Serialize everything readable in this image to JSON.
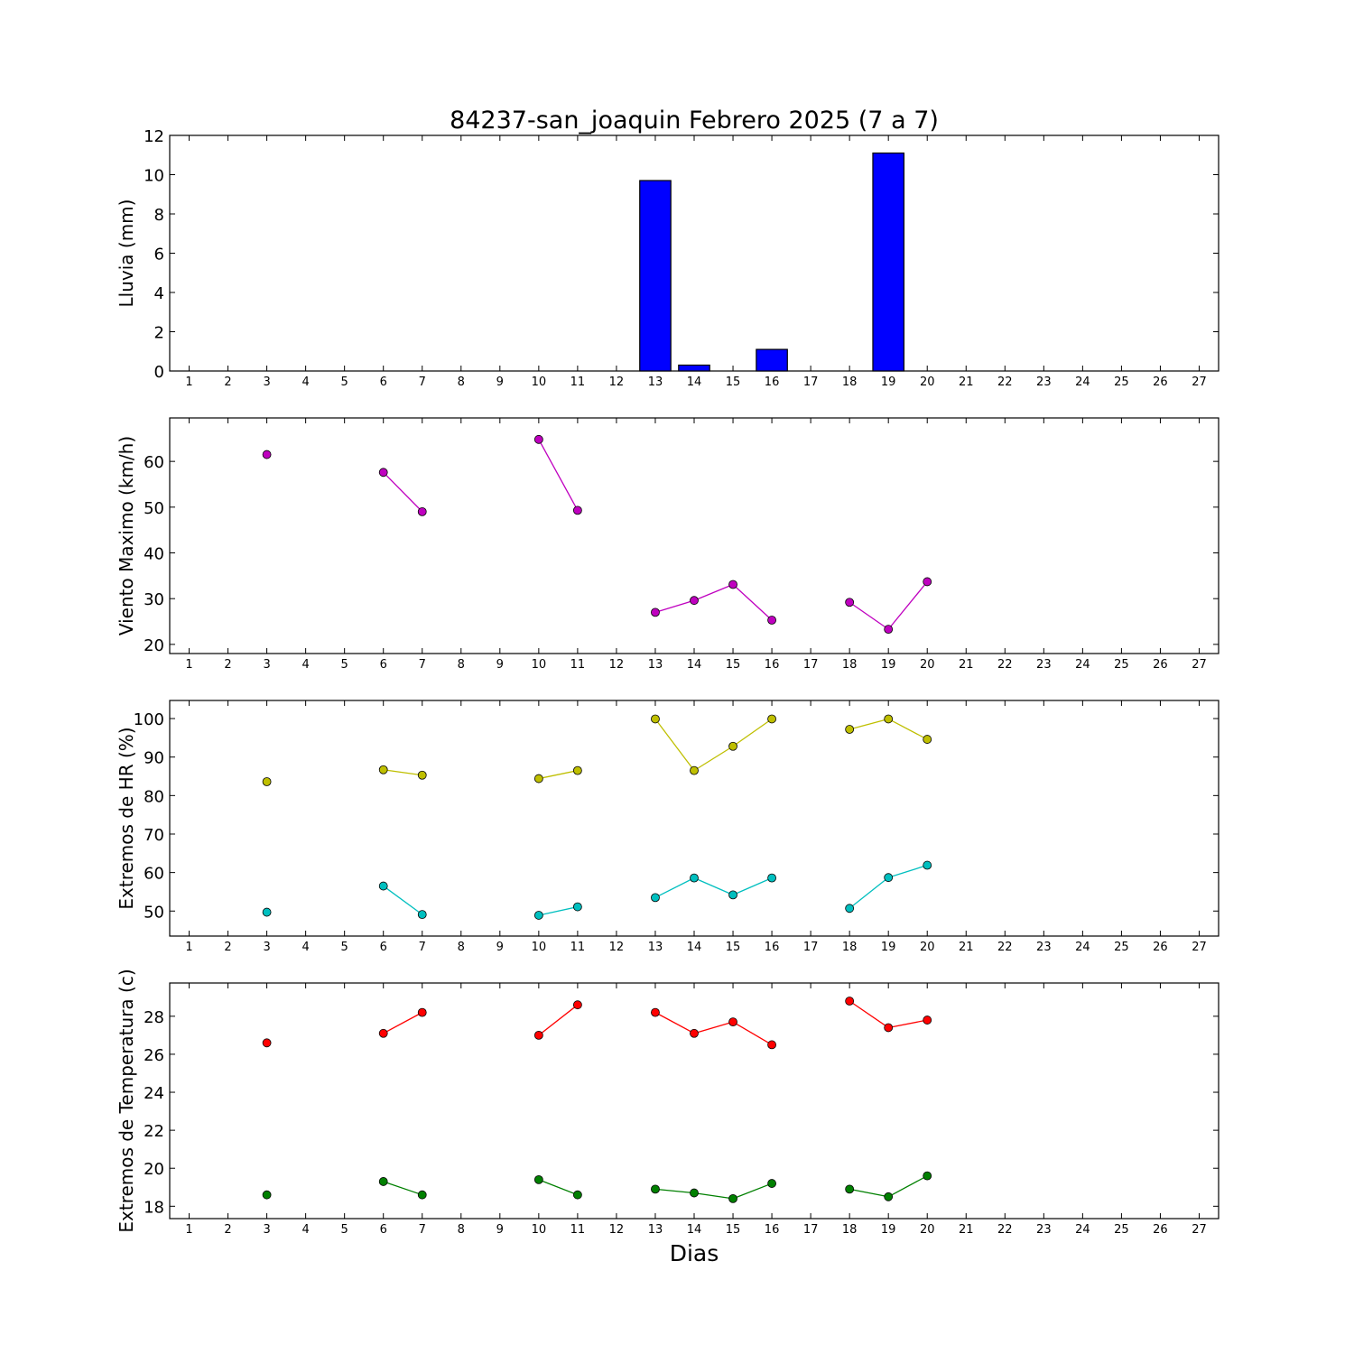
{
  "title": "84237-san_joaquin Febrero 2025  (7 a 7)",
  "xlabel": "Dias",
  "chart_data": [
    {
      "type": "bar",
      "ylabel": "Lluvia (mm)",
      "xlim": [
        0.5,
        27.5
      ],
      "xticks": [
        1,
        2,
        3,
        4,
        5,
        6,
        7,
        8,
        9,
        10,
        11,
        12,
        13,
        14,
        15,
        16,
        17,
        18,
        19,
        20,
        21,
        22,
        23,
        24,
        25,
        26,
        27
      ],
      "ylim": [
        0,
        12
      ],
      "yticks": [
        0,
        2,
        4,
        6,
        8,
        10,
        12
      ],
      "bar_color": "#0000ff",
      "x": [
        3,
        6,
        7,
        10,
        11,
        13,
        14,
        16,
        19,
        20
      ],
      "values": [
        0,
        0,
        0,
        0,
        0,
        9.7,
        0.3,
        1.1,
        11.1,
        0
      ]
    },
    {
      "type": "line",
      "ylabel": "Viento Maximo (km/h)",
      "xlim": [
        0.5,
        27.5
      ],
      "xticks": [
        1,
        2,
        3,
        4,
        5,
        6,
        7,
        8,
        9,
        10,
        11,
        12,
        13,
        14,
        15,
        16,
        17,
        18,
        19,
        20,
        21,
        22,
        23,
        24,
        25,
        26,
        27
      ],
      "ylim": [
        18,
        69.5
      ],
      "yticks": [
        20,
        30,
        40,
        50,
        60
      ],
      "series": [
        {
          "color": "#bf00bf",
          "x": [
            3,
            6,
            7,
            10,
            11,
            13,
            14,
            15,
            16,
            18,
            19,
            20
          ],
          "values": [
            61.5,
            57.6,
            49.0,
            64.8,
            49.3,
            27.0,
            29.6,
            33.1,
            25.3,
            29.2,
            23.3,
            33.7
          ]
        }
      ]
    },
    {
      "type": "line",
      "ylabel": "Extremos de HR (%)",
      "xlim": [
        0.5,
        27.5
      ],
      "xticks": [
        1,
        2,
        3,
        4,
        5,
        6,
        7,
        8,
        9,
        10,
        11,
        12,
        13,
        14,
        15,
        16,
        17,
        18,
        19,
        20,
        21,
        22,
        23,
        24,
        25,
        26,
        27
      ],
      "ylim": [
        43.5,
        104.7
      ],
      "yticks": [
        50,
        60,
        70,
        80,
        90,
        100
      ],
      "series": [
        {
          "color": "#bfbf00",
          "x": [
            3,
            6,
            7,
            10,
            11,
            13,
            14,
            15,
            16,
            18,
            19,
            20
          ],
          "values": [
            83.6,
            86.7,
            85.3,
            84.4,
            86.5,
            99.9,
            86.5,
            92.8,
            99.9,
            97.2,
            99.9,
            94.6
          ]
        },
        {
          "color": "#00bfbf",
          "x": [
            3,
            6,
            7,
            10,
            11,
            13,
            14,
            15,
            16,
            18,
            19,
            20
          ],
          "values": [
            49.7,
            56.5,
            49.1,
            48.9,
            51.1,
            53.5,
            58.6,
            54.2,
            58.6,
            50.7,
            58.7,
            61.9
          ]
        }
      ]
    },
    {
      "type": "line",
      "ylabel": "Extremos de Temperatura (c)",
      "xlim": [
        0.5,
        27.5
      ],
      "xticks": [
        1,
        2,
        3,
        4,
        5,
        6,
        7,
        8,
        9,
        10,
        11,
        12,
        13,
        14,
        15,
        16,
        17,
        18,
        19,
        20,
        21,
        22,
        23,
        24,
        25,
        26,
        27
      ],
      "ylim": [
        17.35,
        29.75
      ],
      "yticks": [
        18,
        20,
        22,
        24,
        26,
        28
      ],
      "series": [
        {
          "color": "#ff0000",
          "x": [
            3,
            6,
            7,
            10,
            11,
            13,
            14,
            15,
            16,
            18,
            19,
            20
          ],
          "values": [
            26.6,
            27.1,
            28.2,
            27.0,
            28.6,
            28.2,
            27.1,
            27.7,
            26.5,
            28.8,
            27.4,
            27.8
          ]
        },
        {
          "color": "#008000",
          "x": [
            3,
            6,
            7,
            10,
            11,
            13,
            14,
            15,
            16,
            18,
            19,
            20
          ],
          "values": [
            18.6,
            19.3,
            18.6,
            19.4,
            18.6,
            18.9,
            18.7,
            18.4,
            19.2,
            18.9,
            18.5,
            19.6
          ]
        }
      ]
    }
  ]
}
